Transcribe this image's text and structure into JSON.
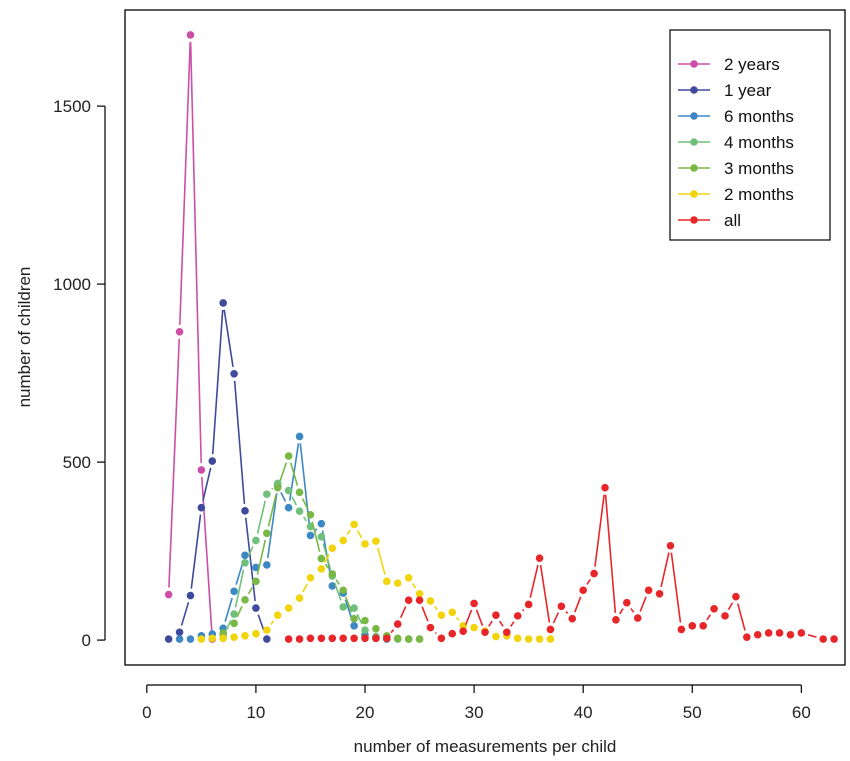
{
  "chart_data": {
    "type": "line",
    "title": "",
    "xlabel": "number of measurements per child",
    "ylabel": "number of children",
    "xlim": [
      -2,
      64
    ],
    "ylim": [
      -70,
      1770
    ],
    "x_ticks": [
      0,
      10,
      20,
      30,
      40,
      50,
      60
    ],
    "y_ticks": [
      0,
      500,
      1000,
      1500
    ],
    "grid": false,
    "legend_position": "top-right",
    "series": [
      {
        "name": "2 years",
        "color": "#cc4fa7",
        "x": [
          2,
          3,
          4,
          5,
          6
        ],
        "y": [
          128,
          866,
          1700,
          478,
          3
        ]
      },
      {
        "name": "1 year",
        "color": "#3f4a9c",
        "x": [
          2,
          3,
          4,
          5,
          6,
          7,
          8,
          9,
          10,
          11
        ],
        "y": [
          3,
          22,
          125,
          372,
          503,
          947,
          748,
          363,
          90,
          3
        ]
      },
      {
        "name": "6 months",
        "color": "#3c87c4",
        "x": [
          3,
          4,
          5,
          6,
          7,
          8,
          9,
          10,
          11,
          12,
          13,
          14,
          15,
          16,
          17,
          18,
          19,
          20,
          21,
          22
        ],
        "y": [
          3,
          3,
          12,
          17,
          33,
          137,
          238,
          204,
          211,
          432,
          372,
          572,
          294,
          327,
          152,
          132,
          40,
          15,
          5,
          3
        ]
      },
      {
        "name": "4 months",
        "color": "#6ec07a",
        "x": [
          7,
          8,
          9,
          10,
          11,
          12,
          13,
          14,
          15,
          16,
          17,
          18,
          19,
          20,
          21,
          22,
          23,
          24,
          25
        ],
        "y": [
          12,
          73,
          217,
          280,
          410,
          440,
          420,
          362,
          319,
          290,
          180,
          93,
          90,
          28,
          10,
          5,
          3,
          3,
          3
        ]
      },
      {
        "name": "3 months",
        "color": "#7ab846",
        "x": [
          7,
          8,
          9,
          10,
          11,
          12,
          13,
          14,
          15,
          16,
          17,
          18,
          19,
          20,
          21,
          22,
          23,
          24,
          25
        ],
        "y": [
          20,
          47,
          113,
          165,
          300,
          428,
          517,
          415,
          352,
          229,
          186,
          140,
          60,
          55,
          32,
          12,
          5,
          3,
          3
        ]
      },
      {
        "name": "2 months",
        "color": "#f2d40a",
        "x": [
          5,
          6,
          7,
          8,
          9,
          10,
          11,
          12,
          13,
          14,
          15,
          16,
          17,
          18,
          19,
          20,
          21,
          22,
          23,
          24,
          25,
          26,
          27,
          28,
          29,
          30,
          31,
          32,
          33,
          34,
          35,
          36,
          37
        ],
        "y": [
          3,
          5,
          5,
          8,
          12,
          18,
          28,
          70,
          90,
          118,
          175,
          200,
          258,
          280,
          325,
          270,
          278,
          165,
          160,
          175,
          130,
          110,
          70,
          78,
          40,
          35,
          25,
          10,
          12,
          5,
          3,
          3,
          3
        ]
      },
      {
        "name": "all",
        "color": "#e8262a",
        "x": [
          13,
          14,
          15,
          16,
          17,
          18,
          19,
          20,
          21,
          22,
          23,
          24,
          25,
          26,
          27,
          28,
          29,
          30,
          31,
          32,
          33,
          34,
          35,
          36,
          37,
          38,
          39,
          40,
          41,
          42,
          43,
          44,
          45,
          46,
          47,
          48,
          49,
          50,
          51,
          52,
          53,
          54,
          55,
          56,
          57,
          58,
          59,
          60,
          62,
          63
        ],
        "y": [
          3,
          3,
          5,
          5,
          5,
          5,
          5,
          5,
          5,
          5,
          45,
          112,
          112,
          35,
          5,
          18,
          25,
          103,
          22,
          70,
          22,
          68,
          100,
          230,
          30,
          95,
          60,
          140,
          187,
          428,
          57,
          105,
          62,
          140,
          130,
          265,
          30,
          40,
          40,
          88,
          68,
          122,
          8,
          15,
          20,
          20,
          15,
          20,
          3,
          3
        ]
      }
    ]
  }
}
